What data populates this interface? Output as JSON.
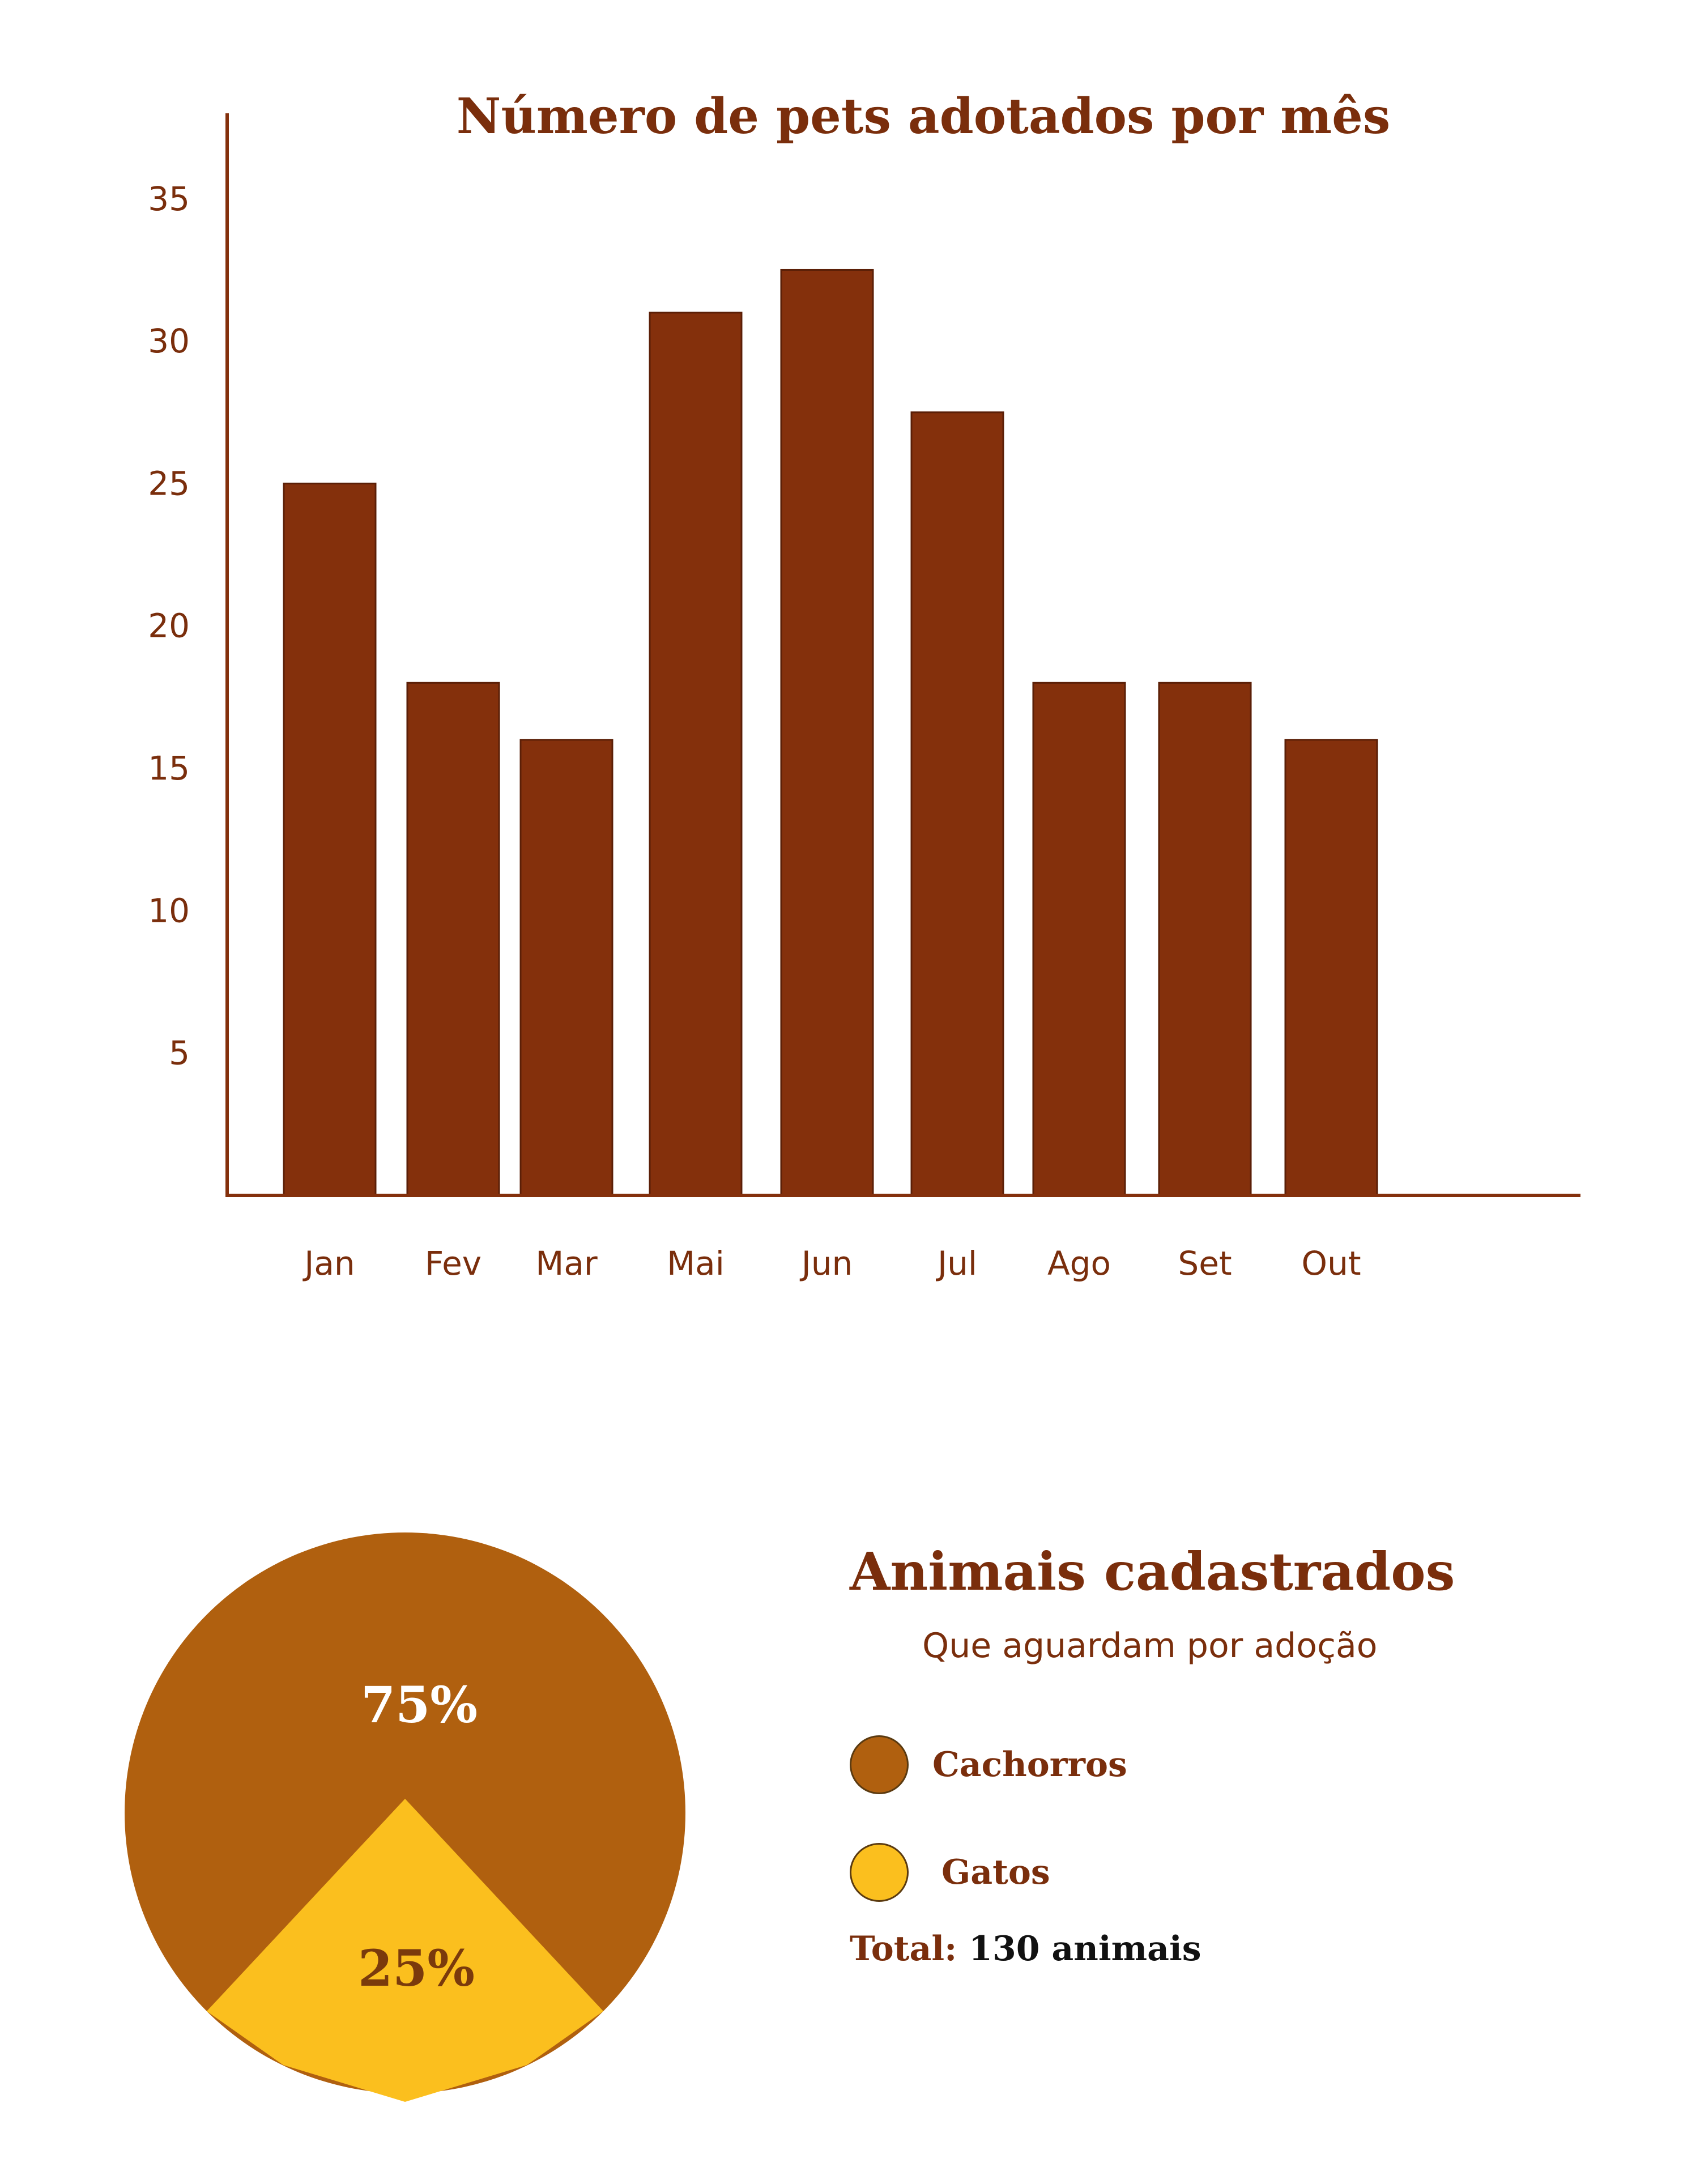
{
  "colors": {
    "bar": "#84300c",
    "axis": "#84300c",
    "text": "#7a2e0c",
    "dogs": "#b0600f",
    "cats": "#fbbf1e",
    "pct_dogs_text": "#ffffff",
    "pct_cats_text": "#7a3a0c"
  },
  "chart_data": [
    {
      "type": "bar",
      "title": "Número de pets adotados por mês",
      "categories": [
        "Jan",
        "Fev",
        "Mar",
        "Mai",
        "Jun",
        "Jul",
        "Ago",
        "Set",
        "Out"
      ],
      "values": [
        25,
        18,
        16,
        31,
        32.5,
        27.5,
        18,
        18,
        16
      ],
      "yticks": [
        "5",
        "10",
        "15",
        "20",
        "25",
        "30",
        "35"
      ],
      "ylim": [
        0,
        38
      ],
      "grid": false,
      "xlabel": "",
      "ylabel": ""
    },
    {
      "type": "pie",
      "labels": [
        "Cachorros",
        "Gatos"
      ],
      "values": [
        75,
        25
      ],
      "slice_labels": [
        "75%",
        "25%"
      ]
    }
  ],
  "legend": {
    "title": "Animais cadastrados",
    "subtitle": "Que aguardam por adoção",
    "items": [
      {
        "label": "Cachorros",
        "color": "#b0600f"
      },
      {
        "label": "Gatos",
        "color": "#fbbf1e"
      }
    ],
    "total_label": "Total:",
    "total_value": "130 animais"
  }
}
